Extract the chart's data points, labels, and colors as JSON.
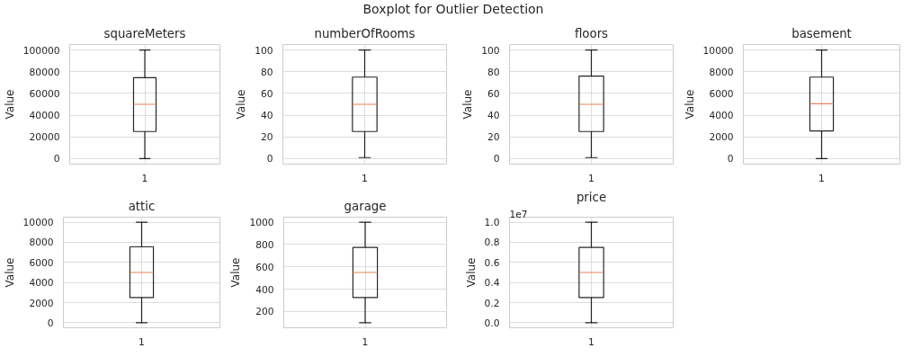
{
  "chart_data": [
    {
      "type": "box",
      "title": "squareMeters",
      "ylabel": "Value",
      "categories": [
        "1"
      ],
      "annotations": [
        "Boxplot for Outlier Detection"
      ],
      "color": "#000000",
      "grid": true,
      "boxes": [
        {
          "low": 0,
          "q1": 25000,
          "median": 50000,
          "q3": 74500,
          "high": 100000
        }
      ],
      "ylim": [
        -5000,
        105000
      ],
      "yticks": [
        0,
        20000,
        40000,
        60000,
        80000,
        100000
      ]
    },
    {
      "type": "box",
      "title": "numberOfRooms",
      "ylabel": "Value",
      "categories": [
        "1"
      ],
      "color": "#000000",
      "grid": true,
      "boxes": [
        {
          "low": 1,
          "q1": 25,
          "median": 50,
          "q3": 75,
          "high": 100
        }
      ],
      "ylim": [
        -5,
        105
      ],
      "yticks": [
        0,
        20,
        40,
        60,
        80,
        100
      ]
    },
    {
      "type": "box",
      "title": "floors",
      "ylabel": "Value",
      "categories": [
        "1"
      ],
      "color": "#000000",
      "grid": true,
      "boxes": [
        {
          "low": 1,
          "q1": 25,
          "median": 50,
          "q3": 76,
          "high": 100
        }
      ],
      "ylim": [
        -5,
        105
      ],
      "yticks": [
        0,
        20,
        40,
        60,
        80,
        100
      ]
    },
    {
      "type": "box",
      "title": "basement",
      "ylabel": "Value",
      "categories": [
        "1"
      ],
      "color": "#000000",
      "grid": true,
      "boxes": [
        {
          "low": 0,
          "q1": 2550,
          "median": 5050,
          "q3": 7500,
          "high": 10000
        }
      ],
      "ylim": [
        -500,
        10500
      ],
      "yticks": [
        0,
        2000,
        4000,
        6000,
        8000,
        10000
      ]
    },
    {
      "type": "box",
      "title": "attic",
      "ylabel": "Value",
      "categories": [
        "1"
      ],
      "color": "#000000",
      "grid": true,
      "boxes": [
        {
          "low": 0,
          "q1": 2500,
          "median": 5000,
          "q3": 7550,
          "high": 10000
        }
      ],
      "ylim": [
        -500,
        10500
      ],
      "yticks": [
        0,
        2000,
        4000,
        6000,
        8000,
        10000
      ]
    },
    {
      "type": "box",
      "title": "garage",
      "ylabel": "Value",
      "categories": [
        "1"
      ],
      "color": "#000000",
      "grid": true,
      "boxes": [
        {
          "low": 100,
          "q1": 325,
          "median": 550,
          "q3": 775,
          "high": 1000
        }
      ],
      "ylim": [
        55,
        1045
      ],
      "yticks": [
        200,
        400,
        600,
        800,
        1000
      ]
    },
    {
      "type": "box",
      "title": "price",
      "ylabel": "Value",
      "categories": [
        "1"
      ],
      "annotations": [
        "1e7"
      ],
      "color": "#000000",
      "grid": true,
      "boxes": [
        {
          "low": 0,
          "q1": 0.25,
          "median": 0.5,
          "q3": 0.75,
          "high": 1.0
        }
      ],
      "ylim": [
        -0.05,
        1.05
      ],
      "yticks": [
        {
          "value": 0,
          "label": "0.0"
        },
        0.2,
        0.4,
        0.6,
        0.8,
        {
          "value": 1.0,
          "label": "1.0"
        }
      ]
    }
  ]
}
